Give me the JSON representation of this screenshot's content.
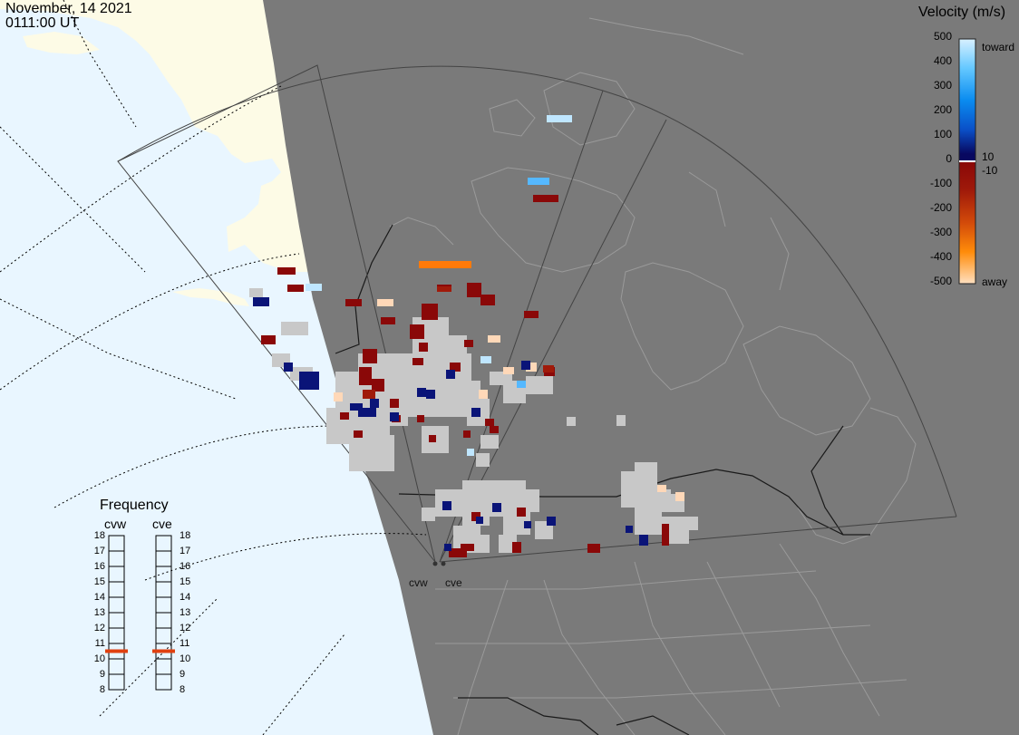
{
  "header": {
    "date": "November, 14 2021",
    "time": "0111:00 UT"
  },
  "colorbar": {
    "title": "Velocity (m/s)",
    "ticks": [
      "500",
      "400",
      "300",
      "200",
      "100",
      "0",
      "-100",
      "-200",
      "-300",
      "-400",
      "-500"
    ],
    "toward_label": "toward",
    "away_label": "away",
    "pos_threshold": "10",
    "neg_threshold": "-10",
    "stops": [
      "#d8f0ff",
      "#64c8ff",
      "#0a8cf0",
      "#0a50c8",
      "#082896",
      "#080860",
      "#8a0808",
      "#a01a0a",
      "#d24a0a",
      "#ff8c0a",
      "#ffe0c0"
    ]
  },
  "frequency": {
    "title": "Frequency",
    "radars": [
      "cvw",
      "cve"
    ],
    "ticks": [
      "18",
      "17",
      "16",
      "15",
      "14",
      "13",
      "12",
      "11",
      "10",
      "9",
      "8"
    ],
    "cvw_mhz": 11,
    "cve_mhz": 11
  },
  "sites": [
    "cvw",
    "cve"
  ],
  "colors": {
    "ocean": "#e9f6ff",
    "night_land": "#7a7a7a",
    "day_land": "#fdfbe6",
    "ground_scatter": "#c8c8c8",
    "fov_line": "#444444",
    "border_line": "#1a1a1a",
    "coast_line": "#9a9a9a"
  }
}
